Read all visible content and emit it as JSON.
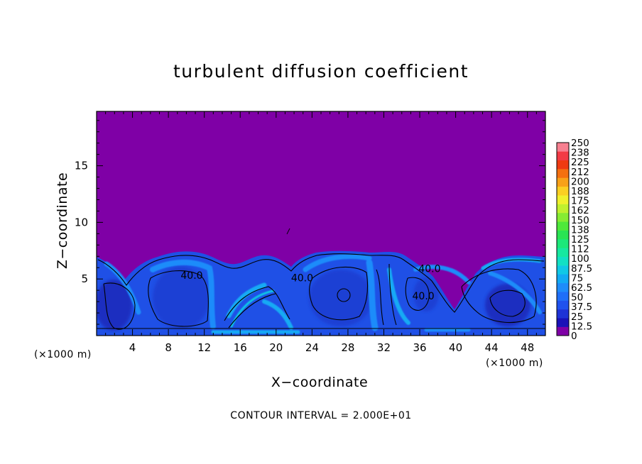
{
  "chart_data": {
    "type": "heatmap",
    "title": "turbulent diffusion coefficient",
    "xlabel": "X−coordinate",
    "ylabel": "Z−coordinate",
    "x_unit": "(×1000 m)",
    "y_unit": "(×1000 m)",
    "xlim": [
      0,
      50
    ],
    "ylim": [
      0,
      19.8
    ],
    "x_ticks": [
      4,
      8,
      12,
      16,
      20,
      24,
      28,
      32,
      36,
      40,
      44,
      48
    ],
    "y_ticks": [
      5,
      10,
      15
    ],
    "grid": false,
    "colorbar": {
      "position": "right",
      "levels": [
        "0",
        "12.5",
        "25",
        "37.5",
        "50",
        "62.5",
        "75",
        "87.5",
        "100",
        "112",
        "125",
        "138",
        "150",
        "162",
        "175",
        "188",
        "200",
        "212",
        "225",
        "238",
        "250"
      ],
      "colors": [
        "#7f00a6",
        "#1a12b8",
        "#1f33d6",
        "#1f52ee",
        "#1f6ff8",
        "#1e8cfa",
        "#12aaf4",
        "#10c8e6",
        "#12e0c4",
        "#16e8a0",
        "#1ce87a",
        "#2ae453",
        "#4ee83a",
        "#86ec33",
        "#c0f02e",
        "#f0f02c",
        "#fbcf22",
        "#f8a118",
        "#f47010",
        "#ef3a12",
        "#f23a45",
        "#f78090"
      ]
    },
    "contour_interval": "CONTOUR INTERVAL = 2.000E+01",
    "contour_labels": [
      {
        "text": "40.0",
        "x": 10.6,
        "z": 5.0
      },
      {
        "text": "40.0",
        "x": 22.9,
        "z": 4.8
      },
      {
        "text": "40.0",
        "x": 37.1,
        "z": 5.6
      },
      {
        "text": "40.0",
        "x": 36.4,
        "z": 3.2
      }
    ],
    "field_summary": "Upper region (z > ~7) is 0; turbulent boundary layer below z ≈ 6–7 with values mostly 37.5–62.5 and thin filaments reaching ~100."
  }
}
